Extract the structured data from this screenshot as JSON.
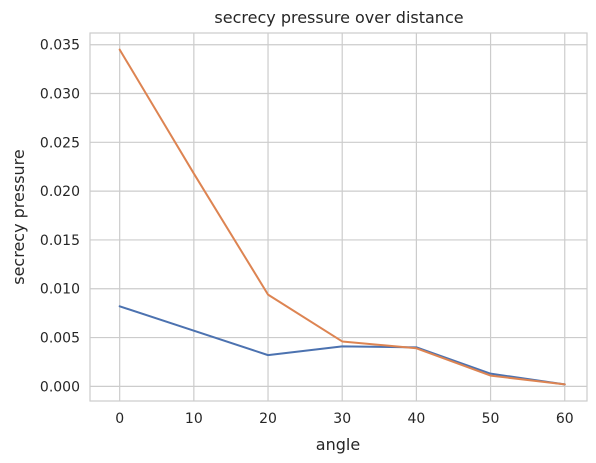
{
  "chart_data": {
    "type": "line",
    "title": "secrecy pressure over distance",
    "xlabel": "angle",
    "ylabel": "secrecy pressure",
    "x": [
      0,
      10,
      20,
      30,
      40,
      50,
      60
    ],
    "xlim": [
      -4,
      63
    ],
    "ylim": [
      -0.0015,
      0.0362
    ],
    "x_ticks": [
      0,
      10,
      20,
      30,
      40,
      50,
      60
    ],
    "y_ticks": [
      "0.000",
      "0.005",
      "0.010",
      "0.015",
      "0.020",
      "0.025",
      "0.030",
      "0.035"
    ],
    "grid": true,
    "series": [
      {
        "color": "#4c72b0",
        "values": [
          0.0082,
          0.0057,
          0.0032,
          0.0041,
          0.004,
          0.0013,
          0.0002
        ]
      },
      {
        "color": "#dd8452",
        "values": [
          0.0345,
          0.0218,
          0.0094,
          0.0046,
          0.0039,
          0.0011,
          0.0002
        ]
      }
    ]
  }
}
